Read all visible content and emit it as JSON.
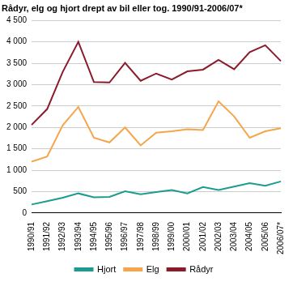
{
  "chart_data": {
    "type": "line",
    "title": "Rådyr, elg og hjort drept av bil eller tog. 1990/91-2006/07*",
    "categories": [
      "1990/91",
      "1991/92",
      "1992/93",
      "1993/94",
      "1994/95",
      "1995/96",
      "1996/97",
      "1997/98",
      "1998/99",
      "1999/00",
      "2000/01",
      "2001/02",
      "2002/03",
      "2003/04",
      "2004/05",
      "2005/06",
      "2006/07*"
    ],
    "series": [
      {
        "name": "Hjort",
        "color": "#1a9c8f",
        "values": [
          200,
          280,
          360,
          460,
          370,
          380,
          510,
          440,
          490,
          540,
          460,
          610,
          540,
          620,
          700,
          640,
          740
        ]
      },
      {
        "name": "Elg",
        "color": "#f5a54a",
        "values": [
          1200,
          1320,
          2050,
          2480,
          1760,
          1650,
          2000,
          1580,
          1880,
          1910,
          1960,
          1940,
          2610,
          2260,
          1760,
          1910,
          1980
        ]
      },
      {
        "name": "Rådyr",
        "color": "#8b1a2b",
        "values": [
          2060,
          2430,
          3300,
          4000,
          3060,
          3050,
          3510,
          3090,
          3260,
          3120,
          3310,
          3350,
          3580,
          3360,
          3760,
          3920,
          3550
        ]
      }
    ],
    "ylim": [
      0,
      4500
    ],
    "yticks": [
      0,
      500,
      {
        "value": 1000,
        "label": "1 000"
      },
      {
        "value": 1500,
        "label": "1 500"
      },
      {
        "value": 2000,
        "label": "2 000"
      },
      {
        "value": 2500,
        "label": "2 500"
      },
      {
        "value": 3000,
        "label": "3 000"
      },
      {
        "value": 3500,
        "label": "3 500"
      },
      {
        "value": 4000,
        "label": "4 000"
      },
      {
        "value": 4500,
        "label": "4 500"
      }
    ],
    "grid": true,
    "legend": "bottom"
  }
}
